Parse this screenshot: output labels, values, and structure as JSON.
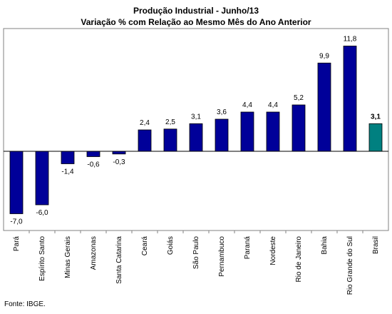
{
  "chart_data": {
    "type": "bar",
    "title": "Produção Industrial - Junho/13",
    "subtitle": "Variação % com Relação ao Mesmo Mês do Ano Anterior",
    "categories": [
      "Pará",
      "Espírito Santo",
      "Minas Gerais",
      "Amazonas",
      "Santa Catarina",
      "Ceará",
      "Goiás",
      "São Paulo",
      "Pernambuco",
      "Paraná",
      "Nordeste",
      "Rio de Janeiro",
      "Bahia",
      "Rio Grande do Sul",
      "Brasil"
    ],
    "values": [
      -7.0,
      -6.0,
      -1.4,
      -0.6,
      -0.3,
      2.4,
      2.5,
      3.1,
      3.6,
      4.4,
      4.4,
      5.2,
      9.9,
      11.8,
      3.1
    ],
    "value_labels": [
      "-7,0",
      "-6,0",
      "-1,4",
      "-0,6",
      "-0,3",
      "2,4",
      "2,5",
      "3,1",
      "3,6",
      "4,4",
      "4,4",
      "5,2",
      "9,9",
      "11,8",
      "3,1"
    ],
    "highlight_category": "Brasil",
    "colors": {
      "bar": "#000099",
      "highlight": "#008080",
      "bar_stroke": "#000000"
    },
    "ylim": [
      -8.5,
      13
    ],
    "grid": false,
    "legend": "none"
  },
  "source": "Fonte: IBGE."
}
